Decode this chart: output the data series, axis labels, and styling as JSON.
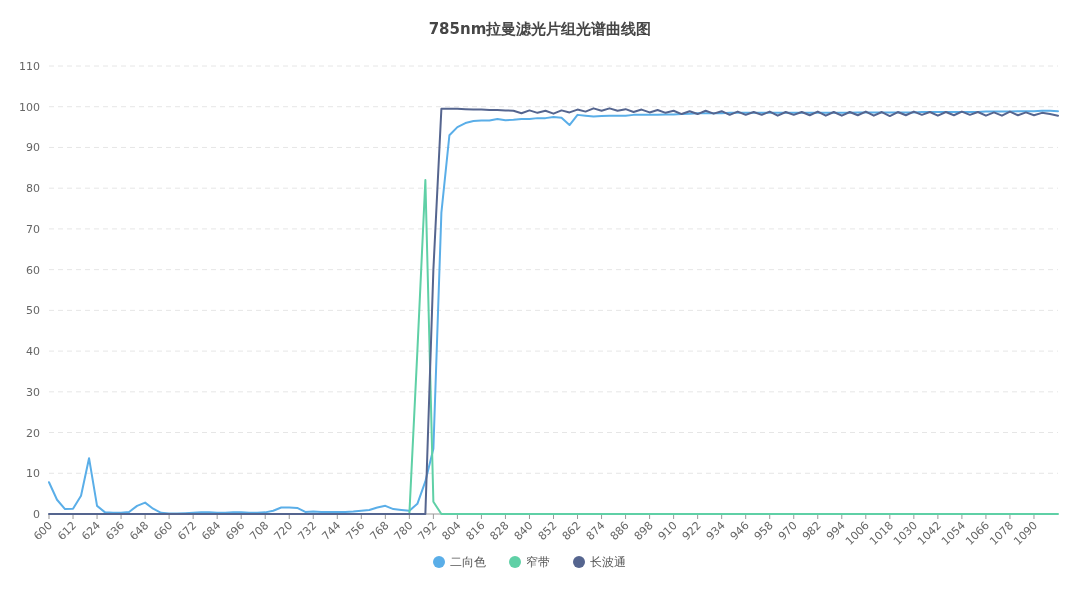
{
  "chart_data": {
    "type": "line",
    "title": "785nm拉曼滤光片组光谱曲线图",
    "categories": [
      "600",
      null,
      null,
      "612",
      null,
      null,
      "624",
      null,
      null,
      "636",
      null,
      null,
      "648",
      null,
      null,
      "660",
      null,
      null,
      "672",
      null,
      null,
      "684",
      null,
      null,
      "696",
      null,
      null,
      "708",
      null,
      null,
      "720",
      null,
      null,
      "732",
      null,
      null,
      "744",
      null,
      null,
      "756",
      null,
      null,
      "768",
      null,
      null,
      "780",
      null,
      null,
      "792",
      null,
      null,
      "804",
      null,
      null,
      "816",
      null,
      null,
      "828",
      null,
      null,
      "840",
      null,
      null,
      "852",
      null,
      null,
      "862",
      null,
      null,
      "874",
      null,
      null,
      "886",
      null,
      null,
      "898",
      null,
      null,
      "910",
      null,
      null,
      "922",
      null,
      null,
      "934",
      null,
      null,
      "946",
      null,
      null,
      "958",
      null,
      null,
      "970",
      null,
      null,
      "982",
      null,
      null,
      "994",
      null,
      null,
      "1006",
      null,
      null,
      "1018",
      null,
      null,
      "1030",
      null,
      null,
      "1042",
      null,
      null,
      "1054",
      null,
      null,
      "1066",
      null,
      null,
      "1078",
      null,
      null,
      "1090",
      null,
      null,
      null
    ],
    "series": [
      {
        "name": "二向色",
        "color": "#5aaee8",
        "values": [
          7.8,
          3.5,
          1.2,
          1.3,
          4.5,
          13.7,
          2,
          0.4,
          0.3,
          0.3,
          0.5,
          2,
          2.8,
          1.3,
          0.3,
          0.1,
          0.1,
          0.2,
          0.3,
          0.4,
          0.4,
          0.3,
          0.3,
          0.4,
          0.4,
          0.3,
          0.3,
          0.4,
          0.8,
          1.6,
          1.6,
          1.5,
          0.5,
          0.6,
          0.5,
          0.5,
          0.5,
          0.5,
          0.6,
          0.8,
          1,
          1.6,
          2,
          1.2,
          1,
          0.8,
          2.5,
          8,
          16,
          74,
          93,
          95,
          96,
          96.5,
          96.6,
          96.6,
          97,
          96.7,
          96.8,
          97,
          97,
          97.2,
          97.2,
          97.5,
          97.3,
          95.5,
          98,
          97.8,
          97.6,
          97.7,
          97.8,
          97.8,
          97.8,
          98,
          98,
          98,
          98,
          98.1,
          98.1,
          98.2,
          98.3,
          98.4,
          98.4,
          98.4,
          98.4,
          98.5,
          98.5,
          98.5,
          98.5,
          98.5,
          98.5,
          98.5,
          98.5,
          98.5,
          98.5,
          98.5,
          98.5,
          98.5,
          98.5,
          98.5,
          98.5,
          98.6,
          98.6,
          98.6,
          98.6,
          98.6,
          98.6,
          98.6,
          98.6,
          98.7,
          98.7,
          98.7,
          98.7,
          98.7,
          98.7,
          98.7,
          98.7,
          98.8,
          98.8,
          98.8,
          98.8,
          98.9,
          98.9,
          98.9,
          99,
          99,
          98.9
        ]
      },
      {
        "name": "窄带",
        "color": "#5fd0a6",
        "values": [
          null,
          null,
          null,
          null,
          null,
          null,
          null,
          null,
          null,
          null,
          null,
          null,
          null,
          null,
          null,
          null,
          null,
          null,
          null,
          null,
          null,
          null,
          null,
          null,
          null,
          null,
          null,
          null,
          null,
          null,
          null,
          null,
          null,
          null,
          null,
          null,
          null,
          null,
          null,
          null,
          null,
          null,
          null,
          null,
          null,
          0,
          40,
          82,
          3,
          0,
          0,
          0,
          0,
          0,
          0,
          0,
          0,
          0,
          0,
          0,
          0,
          0,
          0,
          0,
          0,
          0,
          0,
          0,
          0,
          0,
          0,
          0,
          0,
          0,
          0,
          0,
          0,
          0,
          0,
          0,
          0,
          0,
          0,
          0,
          0,
          0,
          0,
          0,
          0,
          0,
          0,
          0,
          0,
          0,
          0,
          0,
          0,
          0,
          0,
          0,
          0,
          0,
          0,
          0,
          0,
          0,
          0,
          0,
          0,
          0,
          0,
          0,
          0,
          0,
          0,
          0,
          0,
          0,
          0,
          0,
          0,
          0,
          0,
          0,
          0,
          0,
          0
        ]
      },
      {
        "name": "长波通",
        "color": "#55658f",
        "values": [
          0,
          0,
          0,
          0,
          0,
          0,
          0,
          0,
          0,
          0,
          0,
          0,
          0,
          0,
          0,
          0,
          0,
          0,
          0,
          0,
          0,
          0,
          0,
          0,
          0,
          0,
          0,
          0,
          0,
          0,
          0,
          0,
          0,
          0,
          0,
          0,
          0,
          0,
          0,
          0,
          0,
          0,
          0,
          0,
          0,
          0,
          0,
          0,
          60,
          99.5,
          99.5,
          99.5,
          99.4,
          99.3,
          99.3,
          99.2,
          99.2,
          99.1,
          99.0,
          98.4,
          99.1,
          98.5,
          99.0,
          98.3,
          99.1,
          98.6,
          99.3,
          98.8,
          99.6,
          99.0,
          99.6,
          99.0,
          99.4,
          98.7,
          99.3,
          98.6,
          99.2,
          98.5,
          99.0,
          98.2,
          98.9,
          98.2,
          99.0,
          98.3,
          98.9,
          98.0,
          98.8,
          98.0,
          98.7,
          98.0,
          98.8,
          97.8,
          98.7,
          98.0,
          98.7,
          97.9,
          98.8,
          97.8,
          98.7,
          97.8,
          98.7,
          97.9,
          98.8,
          97.8,
          98.7,
          97.7,
          98.7,
          97.9,
          98.8,
          98.0,
          98.7,
          97.8,
          98.7,
          97.9,
          98.8,
          98.0,
          98.7,
          97.8,
          98.6,
          97.8,
          98.8,
          97.9,
          98.6,
          97.9,
          98.5,
          98.2,
          97.8
        ]
      }
    ],
    "ylim": [
      0,
      110
    ],
    "yticks": [
      0,
      10,
      20,
      30,
      40,
      50,
      60,
      70,
      80,
      90,
      100,
      110
    ],
    "grid": "y",
    "legend": "bottom",
    "marker": "none",
    "line_style": "solid"
  }
}
